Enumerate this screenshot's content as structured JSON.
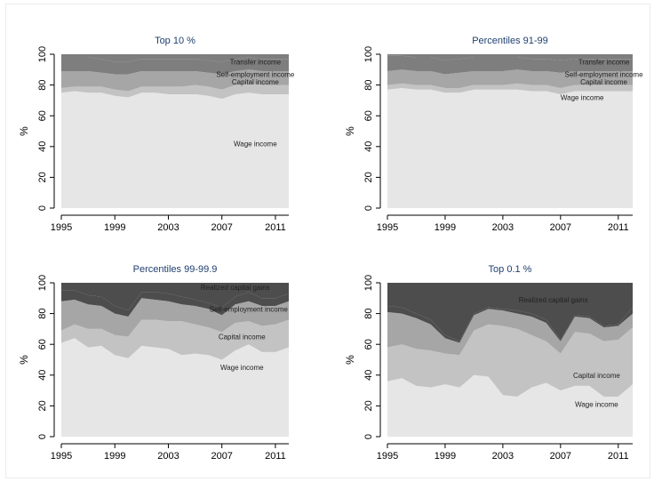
{
  "colors": {
    "wage": "#e6e6e6",
    "capital": "#c3c3c3",
    "selfemp": "#a6a6a6",
    "transfer": "#7e7e7e",
    "realized": "#4d4d4d",
    "axis": "#000000",
    "title": "#1f3f6f"
  },
  "chart_data": [
    {
      "type": "area",
      "stacked": true,
      "title": "Top 10 %",
      "xlabel": "",
      "ylabel": "%",
      "x": [
        1995,
        1996,
        1997,
        1998,
        1999,
        2000,
        2001,
        2002,
        2003,
        2004,
        2005,
        2006,
        2007,
        2008,
        2009,
        2010,
        2011,
        2012
      ],
      "xticks": [
        "1995",
        "1999",
        "2003",
        "2007",
        "2011"
      ],
      "yticks": [
        "0",
        "20",
        "40",
        "60",
        "80",
        "100"
      ],
      "ylim": [
        0,
        100
      ],
      "xlim": [
        1995,
        2012
      ],
      "series": [
        {
          "key": "wage",
          "name": "Wage income",
          "values": [
            75,
            76,
            75,
            75,
            73,
            72,
            75,
            75,
            74,
            74,
            74,
            73,
            71,
            74,
            75,
            74,
            74,
            74
          ]
        },
        {
          "key": "capital",
          "name": "Capital income",
          "values": [
            3,
            3,
            4,
            4,
            4,
            4,
            4,
            4,
            5,
            5,
            6,
            6,
            6,
            6,
            6,
            6,
            6,
            6
          ]
        },
        {
          "key": "selfemp",
          "name": "Self-employment income",
          "values": [
            11,
            10,
            10,
            9,
            10,
            11,
            10,
            10,
            10,
            10,
            9,
            9,
            10,
            9,
            9,
            9,
            9,
            9
          ]
        },
        {
          "key": "transfer",
          "name": "Transfer income",
          "values": [
            9,
            9,
            9,
            9,
            8,
            8,
            8,
            8,
            8,
            8,
            8,
            8,
            8,
            8,
            8,
            8,
            8,
            8
          ]
        }
      ],
      "annotations": [
        {
          "text": "Transfer income",
          "x": 2009.5,
          "y": 95
        },
        {
          "text": "Self-employment income",
          "x": 2009.5,
          "y": 87
        },
        {
          "text": "Capital income",
          "x": 2009.5,
          "y": 82
        },
        {
          "text": "Wage income",
          "x": 2009.5,
          "y": 42
        }
      ]
    },
    {
      "type": "area",
      "stacked": true,
      "title": "Percentiles 91-99",
      "xlabel": "",
      "ylabel": "%",
      "x": [
        1995,
        1996,
        1997,
        1998,
        1999,
        2000,
        2001,
        2002,
        2003,
        2004,
        2005,
        2006,
        2007,
        2008,
        2009,
        2010,
        2011,
        2012
      ],
      "xticks": [
        "1995",
        "1999",
        "2003",
        "2007",
        "2011"
      ],
      "yticks": [
        "0",
        "20",
        "40",
        "60",
        "80",
        "100"
      ],
      "ylim": [
        0,
        100
      ],
      "xlim": [
        1995,
        2012
      ],
      "series": [
        {
          "key": "wage",
          "name": "Wage income",
          "values": [
            77,
            78,
            77,
            77,
            75,
            75,
            77,
            77,
            77,
            77,
            76,
            76,
            74,
            76,
            76,
            76,
            76,
            76
          ]
        },
        {
          "key": "capital",
          "name": "Capital income",
          "values": [
            3,
            3,
            3,
            3,
            3,
            3,
            3,
            3,
            3,
            4,
            4,
            4,
            4,
            4,
            4,
            4,
            4,
            4
          ]
        },
        {
          "key": "selfemp",
          "name": "Self-employment income",
          "values": [
            9,
            9,
            9,
            9,
            9,
            10,
            9,
            9,
            9,
            9,
            9,
            9,
            10,
            9,
            9,
            9,
            9,
            9
          ]
        },
        {
          "key": "transfer",
          "name": "Transfer income",
          "values": [
            10,
            9,
            9,
            9,
            9,
            9,
            9,
            9,
            9,
            8,
            8,
            8,
            8,
            8,
            8,
            8,
            8,
            8
          ]
        }
      ],
      "annotations": [
        {
          "text": "Transfer income",
          "x": 2010,
          "y": 95
        },
        {
          "text": "Self-employment income",
          "x": 2010,
          "y": 87
        },
        {
          "text": "Capital income",
          "x": 2010,
          "y": 82
        },
        {
          "text": "Wage income",
          "x": 2008.5,
          "y": 72
        }
      ]
    },
    {
      "type": "area",
      "stacked": true,
      "title": "Percentiles 99-99.9",
      "xlabel": "",
      "ylabel": "%",
      "x": [
        1995,
        1996,
        1997,
        1998,
        1999,
        2000,
        2001,
        2002,
        2003,
        2004,
        2005,
        2006,
        2007,
        2008,
        2009,
        2010,
        2011,
        2012
      ],
      "xticks": [
        "1995",
        "1999",
        "2003",
        "2007",
        "2011"
      ],
      "yticks": [
        "0",
        "20",
        "40",
        "60",
        "80",
        "100"
      ],
      "ylim": [
        0,
        100
      ],
      "xlim": [
        1995,
        2012
      ],
      "series": [
        {
          "key": "wage",
          "name": "Wage income",
          "values": [
            61,
            64,
            58,
            59,
            53,
            51,
            59,
            58,
            57,
            53,
            54,
            53,
            50,
            56,
            60,
            55,
            55,
            58
          ]
        },
        {
          "key": "capital",
          "name": "Capital income",
          "values": [
            8,
            9,
            12,
            11,
            13,
            14,
            17,
            18,
            18,
            22,
            19,
            18,
            18,
            18,
            15,
            17,
            18,
            18
          ]
        },
        {
          "key": "selfemp",
          "name": "Self-employment income",
          "values": [
            19,
            16,
            16,
            15,
            14,
            13,
            14,
            13,
            13,
            11,
            12,
            12,
            11,
            12,
            13,
            13,
            12,
            12
          ]
        },
        {
          "key": "realized",
          "name": "Realized capital gains",
          "values": [
            7,
            6,
            6,
            6,
            5,
            4,
            4,
            5,
            5,
            5,
            4,
            4,
            5,
            5,
            6,
            5,
            5,
            5
          ]
        }
      ],
      "annotations": [
        {
          "text": "Realized capital gains",
          "x": 2008,
          "y": 97
        },
        {
          "text": "Self-employment income",
          "x": 2009,
          "y": 83
        },
        {
          "text": "Capital income",
          "x": 2008.5,
          "y": 65
        },
        {
          "text": "Wage income",
          "x": 2008.5,
          "y": 45
        }
      ]
    },
    {
      "type": "area",
      "stacked": true,
      "title": "Top 0.1 %",
      "xlabel": "",
      "ylabel": "%",
      "x": [
        1995,
        1996,
        1997,
        1998,
        1999,
        2000,
        2001,
        2002,
        2003,
        2004,
        2005,
        2006,
        2007,
        2008,
        2009,
        2010,
        2011,
        2012
      ],
      "xticks": [
        "1995",
        "1999",
        "2003",
        "2007",
        "2011"
      ],
      "yticks": [
        "0",
        "20",
        "40",
        "60",
        "80",
        "100"
      ],
      "ylim": [
        0,
        100
      ],
      "xlim": [
        1995,
        2012
      ],
      "series": [
        {
          "key": "wage",
          "name": "Wage income",
          "values": [
            36,
            38,
            33,
            32,
            34,
            32,
            40,
            39,
            27,
            26,
            32,
            35,
            30,
            33,
            33,
            26,
            26,
            34
          ]
        },
        {
          "key": "capital",
          "name": "Capital income",
          "values": [
            22,
            22,
            24,
            24,
            20,
            21,
            29,
            34,
            45,
            44,
            34,
            27,
            24,
            35,
            34,
            36,
            37,
            37
          ]
        },
        {
          "key": "selfemp",
          "name": "Self-employment income",
          "values": [
            23,
            20,
            20,
            17,
            10,
            8,
            10,
            10,
            10,
            10,
            12,
            12,
            8,
            10,
            10,
            9,
            9,
            9
          ]
        },
        {
          "key": "realized",
          "name": "Realized capital gains",
          "values": [
            4,
            4,
            3,
            3,
            2,
            1,
            1,
            1,
            1,
            2,
            2,
            2,
            1,
            1,
            1,
            1,
            1,
            4
          ]
        }
      ],
      "annotations": [
        {
          "text": "Realized capital gains",
          "x": 2006.5,
          "y": 89
        },
        {
          "text": "Capital income",
          "x": 2009.5,
          "y": 40
        },
        {
          "text": "Wage income",
          "x": 2009.5,
          "y": 21
        }
      ]
    }
  ]
}
